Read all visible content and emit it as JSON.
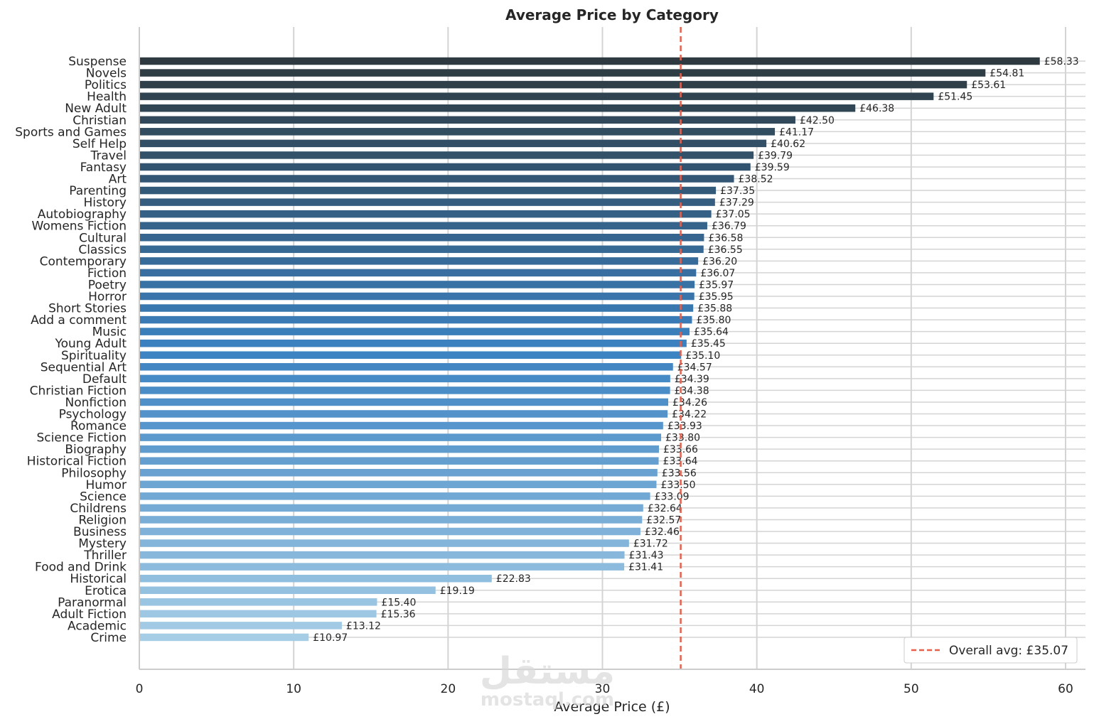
{
  "chart_data": {
    "type": "bar",
    "orientation": "horizontal",
    "title": "Average Price by Category",
    "xlabel": "Average Price (£)",
    "ylabel": "",
    "xlim": [
      0,
      61.2
    ],
    "xticks": [
      0,
      10,
      20,
      30,
      40,
      50,
      60
    ],
    "grid": true,
    "legend_position": "bottom-right",
    "reference_line": {
      "value": 35.07,
      "label": "Overall avg: £35.07",
      "color": "#e8604c",
      "style": "dashed"
    },
    "value_label_prefix": "£",
    "color_scale": {
      "dark": "#2f3a40",
      "mid": "#3b82c2",
      "light": "#a6cde6"
    },
    "categories": [
      "Suspense",
      "Novels",
      "Politics",
      "Health",
      "New Adult",
      "Christian",
      "Sports and Games",
      "Self Help",
      "Travel",
      "Fantasy",
      "Art",
      "Parenting",
      "History",
      "Autobiography",
      "Womens Fiction",
      "Cultural",
      "Classics",
      "Contemporary",
      "Fiction",
      "Poetry",
      "Horror",
      "Short Stories",
      "Add a comment",
      "Music",
      "Young Adult",
      "Spirituality",
      "Sequential Art",
      "Default",
      "Christian Fiction",
      "Nonfiction",
      "Psychology",
      "Romance",
      "Science Fiction",
      "Biography",
      "Historical Fiction",
      "Philosophy",
      "Humor",
      "Science",
      "Childrens",
      "Religion",
      "Business",
      "Mystery",
      "Thriller",
      "Food and Drink",
      "Historical",
      "Erotica",
      "Paranormal",
      "Adult Fiction",
      "Academic",
      "Crime"
    ],
    "values": [
      58.33,
      54.81,
      53.61,
      51.45,
      46.38,
      42.5,
      41.17,
      40.62,
      39.79,
      39.59,
      38.52,
      37.35,
      37.29,
      37.05,
      36.79,
      36.58,
      36.55,
      36.2,
      36.07,
      35.97,
      35.95,
      35.88,
      35.8,
      35.64,
      35.45,
      35.1,
      34.57,
      34.39,
      34.38,
      34.26,
      34.22,
      33.93,
      33.8,
      33.66,
      33.64,
      33.56,
      33.5,
      33.09,
      32.64,
      32.57,
      32.46,
      31.72,
      31.43,
      31.41,
      22.83,
      19.19,
      15.4,
      15.36,
      13.12,
      10.97
    ]
  },
  "watermark": {
    "arabic": "مستقل",
    "latin": "mostaql.com"
  }
}
